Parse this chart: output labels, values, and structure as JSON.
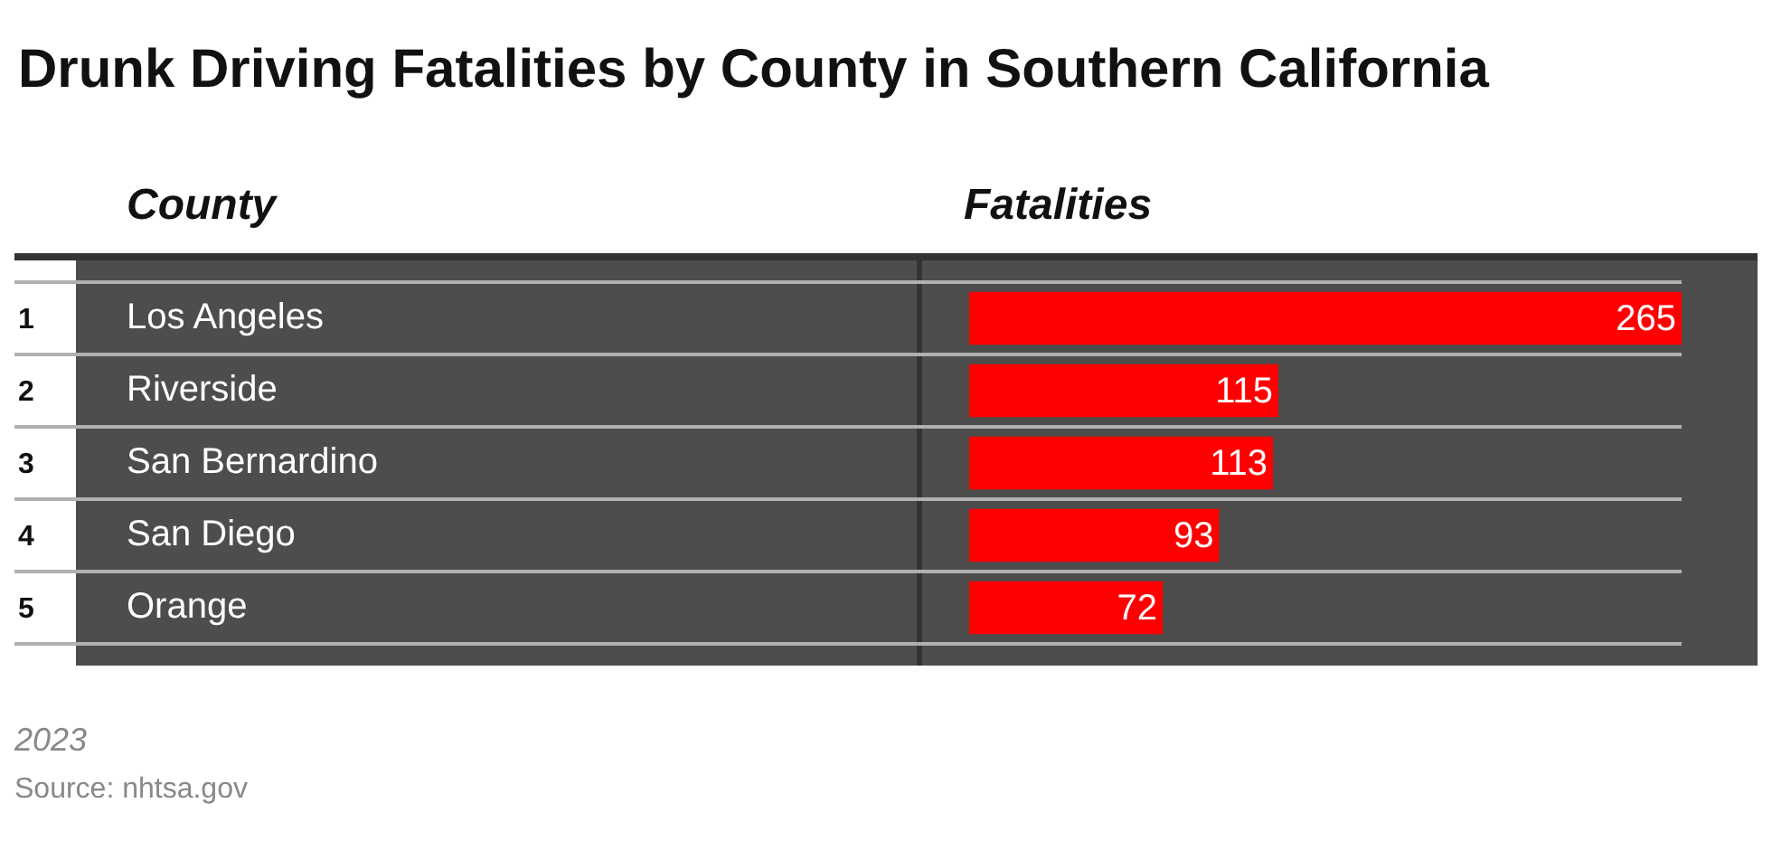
{
  "chart_data": {
    "type": "bar",
    "orientation": "horizontal",
    "title": "Drunk Driving Fatalities by County in Southern California",
    "ylabel": "County",
    "xlabel": "Fatalities",
    "categories": [
      "Los Angeles",
      "Riverside",
      "San Bernardino",
      "San Diego",
      "Orange"
    ],
    "values": [
      265,
      115,
      113,
      93,
      72
    ],
    "color": "#ff0000",
    "data_labels": true,
    "grid": "y",
    "legend": false,
    "annotations": [
      "1",
      "2",
      "3",
      "4",
      "5",
      "2023",
      "Source: nhtsa.gov"
    ]
  }
}
